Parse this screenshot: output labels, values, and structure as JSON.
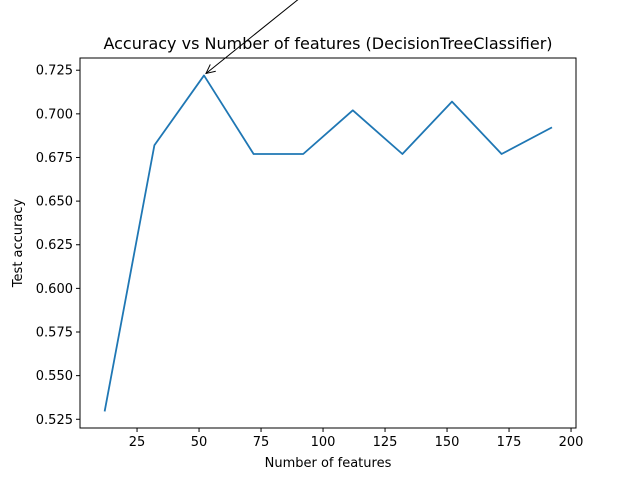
{
  "chart_data": {
    "type": "line",
    "title": "Accuracy vs Number of features (DecisionTreeClassifier)",
    "xlabel": "Number of features",
    "ylabel": "Test accuracy",
    "x": [
      12,
      32,
      52,
      72,
      92,
      112,
      132,
      152,
      172,
      192
    ],
    "series": [
      {
        "values": [
          0.53,
          0.682,
          0.722,
          0.677,
          0.677,
          0.702,
          0.677,
          0.707,
          0.677,
          0.692
        ]
      }
    ],
    "xlim": [
      2,
      202
    ],
    "ylim": [
      0.52,
      0.732
    ],
    "xticks": [
      25,
      50,
      75,
      100,
      125,
      150,
      175,
      200
    ],
    "yticks": [
      0.525,
      0.55,
      0.575,
      0.6,
      0.625,
      0.65,
      0.675,
      0.7,
      0.725
    ],
    "xtick_labels": [
      "25",
      "50",
      "75",
      "100",
      "125",
      "150",
      "175",
      "200"
    ],
    "ytick_labels": [
      "0.525",
      "0.550",
      "0.575",
      "0.600",
      "0.625",
      "0.650",
      "0.675",
      "0.700",
      "0.725"
    ],
    "grid": false,
    "legend": "none",
    "annotation": {
      "type": "arrow",
      "point_to": [
        52,
        0.722
      ]
    },
    "colors": {
      "line": "#1f77b4",
      "axes": "#000000"
    }
  }
}
